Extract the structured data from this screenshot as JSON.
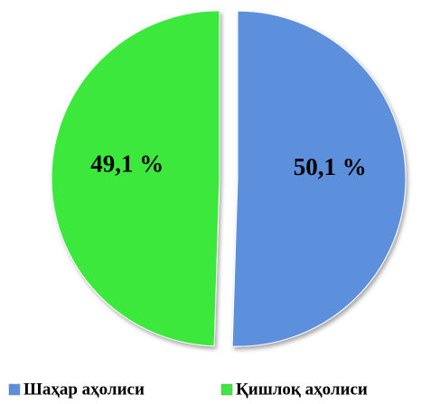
{
  "chart_data": {
    "type": "pie",
    "categories": [
      "Шаҳар аҳолиси",
      "Қишлоқ аҳолиси"
    ],
    "values": [
      50.1,
      49.1
    ],
    "value_labels": [
      "50,1 %",
      "49,1 %"
    ],
    "colors": [
      "#5b8fdc",
      "#3ee83e"
    ],
    "legend": "bottom"
  }
}
